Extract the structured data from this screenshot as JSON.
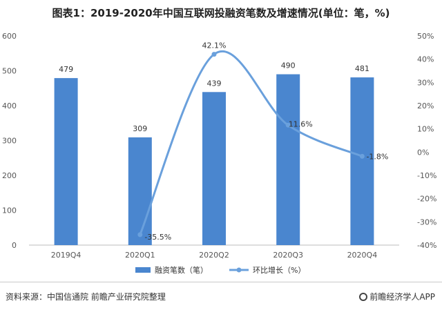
{
  "chart_data": {
    "type": "bar",
    "title": "图表1：2019-2020年中国互联网投融资笔数及增速情况(单位：笔，%)",
    "categories": [
      "2019Q4",
      "2020Q1",
      "2020Q2",
      "2020Q3",
      "2020Q4"
    ],
    "series": [
      {
        "name": "融资笔数（笔）",
        "type": "bar",
        "axis": "left",
        "values": [
          479,
          309,
          439,
          490,
          481
        ],
        "labels": [
          "479",
          "309",
          "439",
          "490",
          "481"
        ]
      },
      {
        "name": "环比增长（%）",
        "type": "line",
        "axis": "right",
        "smooth": true,
        "values": [
          null,
          -35.5,
          42.1,
          11.6,
          -1.8
        ],
        "labels": [
          "",
          "-35.5%",
          "42.1%",
          "11.6%",
          "-1.8%"
        ]
      }
    ],
    "y_left": {
      "min": 0,
      "max": 600,
      "step": 100
    },
    "y_right": {
      "min": -40,
      "max": 50,
      "step": 10,
      "unit": "%"
    },
    "legend_position": "bottom",
    "grid": false,
    "colors": {
      "bar": "#4a86cf",
      "line": "#6aa0dc"
    }
  },
  "footer": {
    "source": "资料来源：中国信通院 前瞻产业研究院整理",
    "brand": "前瞻经济学人APP"
  }
}
